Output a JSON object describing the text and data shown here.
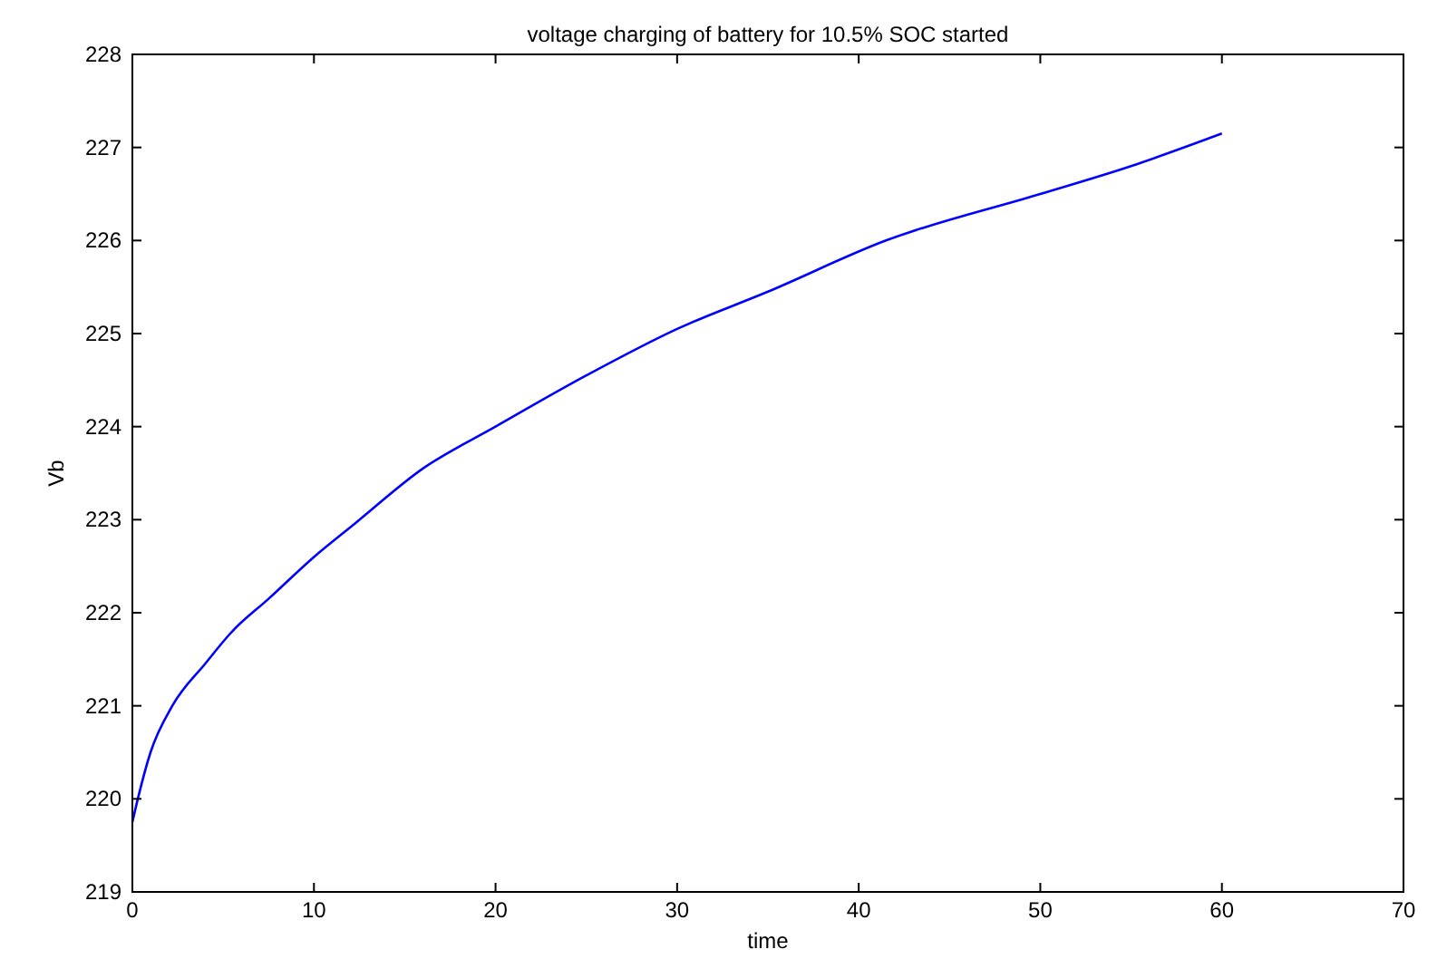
{
  "chart_data": {
    "type": "line",
    "title": "voltage charging of battery for 10.5% SOC started",
    "xlabel": "time",
    "ylabel": "Vb",
    "xlim": [
      0,
      70
    ],
    "xticks": [
      0,
      10,
      20,
      30,
      40,
      50,
      60,
      70
    ],
    "ylim": [
      219,
      228
    ],
    "yticks": [
      219,
      220,
      221,
      222,
      223,
      224,
      225,
      226,
      227,
      228
    ],
    "grid": false,
    "series": [
      {
        "color": "#0000ff",
        "x": [
          0,
          0.3,
          1,
          2.2,
          4,
          5.5,
          7.5,
          10,
          12.2,
          16,
          20,
          25,
          30,
          35,
          41.5,
          50,
          55,
          60
        ],
        "values": [
          219.75,
          220.0,
          220.5,
          221.0,
          221.45,
          221.8,
          222.15,
          222.6,
          222.95,
          223.55,
          224.0,
          224.55,
          225.05,
          225.45,
          226.0,
          226.5,
          226.8,
          227.15
        ]
      }
    ]
  }
}
